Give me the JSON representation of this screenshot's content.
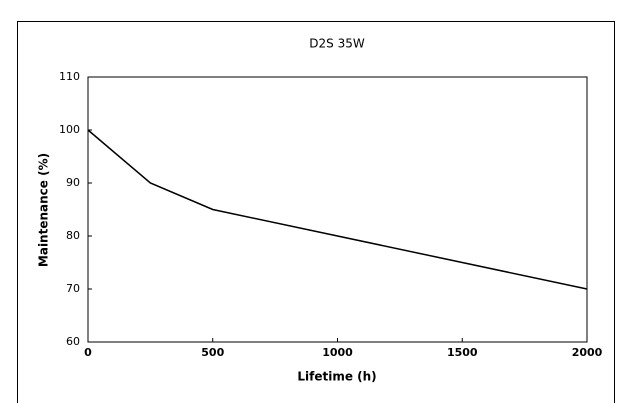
{
  "chart_data": {
    "type": "line",
    "title": "D2S 35W",
    "x_label": "Lifetime (h)",
    "y_label": "Maintenance (%)",
    "x": [
      0,
      250,
      500,
      2000
    ],
    "series": [
      {
        "name": "D2S 35W",
        "color": "#000000",
        "values": [
          100,
          90,
          85,
          70
        ]
      }
    ],
    "xlim": [
      0,
      2000
    ],
    "xticks": [
      0,
      500,
      1000,
      1500,
      2000
    ],
    "ylim": [
      60,
      110
    ],
    "yticks": [
      60,
      70,
      80,
      90,
      100,
      110
    ],
    "grid": false
  }
}
